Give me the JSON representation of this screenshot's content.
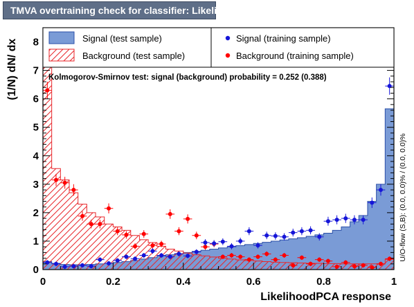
{
  "title": "TMVA overtraining check for classifier: LikelihoodPCA",
  "legend": {
    "signal_test": "Signal (test sample)",
    "background_test": "Background (test sample)",
    "signal_train": "Signal (training sample)",
    "background_train": "Background (training sample)"
  },
  "ks_text": "Kolmogorov-Smirnov test: signal (background) probability = 0.252 (0.388)",
  "overflow_text": "U/O-flow (S,B): (0.0, 0.0)% / (0.0, 0.0)%",
  "colors": {
    "title_bg": "#5f6f88",
    "signal_fill": "#7a9bd6",
    "signal_line": "#2b4fa8",
    "background_hatch": "#e8262a",
    "signal_marker": "#1515d8",
    "background_marker": "#ff0000"
  },
  "chart_data": {
    "type": "histogram",
    "xlabel": "LikelihoodPCA response",
    "ylabel": "(1/N) dN/ dx",
    "xlim": [
      0,
      1
    ],
    "ylim": [
      0,
      8.5
    ],
    "x_ticks": [
      "0",
      "0.2",
      "0.4",
      "0.6",
      "0.8",
      "1"
    ],
    "y_ticks": [
      "0",
      "1",
      "2",
      "3",
      "4",
      "5",
      "6",
      "7",
      "8"
    ],
    "bins": 40,
    "series": [
      {
        "name": "Signal (test sample)",
        "style": "filled",
        "values": [
          0.28,
          0.22,
          0.18,
          0.17,
          0.17,
          0.18,
          0.2,
          0.22,
          0.25,
          0.28,
          0.32,
          0.37,
          0.42,
          0.48,
          0.52,
          0.56,
          0.6,
          0.64,
          0.68,
          0.72,
          0.76,
          0.8,
          0.84,
          0.88,
          0.92,
          0.96,
          1.0,
          1.04,
          1.08,
          1.12,
          1.17,
          1.22,
          1.28,
          1.38,
          1.5,
          1.68,
          1.9,
          2.4,
          3.0,
          5.65
        ]
      },
      {
        "name": "Background (test sample)",
        "style": "hatched",
        "values": [
          7.15,
          3.55,
          3.15,
          2.7,
          2.3,
          2.0,
          1.85,
          1.6,
          1.5,
          1.38,
          1.2,
          1.05,
          0.95,
          0.82,
          0.72,
          0.65,
          0.58,
          0.52,
          0.48,
          0.44,
          0.4,
          0.37,
          0.34,
          0.32,
          0.3,
          0.28,
          0.26,
          0.25,
          0.24,
          0.23,
          0.22,
          0.22,
          0.21,
          0.21,
          0.2,
          0.2,
          0.2,
          0.2,
          0.2,
          0.36
        ]
      },
      {
        "name": "Signal (training sample)",
        "style": "markers",
        "values": [
          0.25,
          0.2,
          0.1,
          0.12,
          0.15,
          0.12,
          0.35,
          0.22,
          0.32,
          0.45,
          0.38,
          0.5,
          0.65,
          0.5,
          0.45,
          0.55,
          0.48,
          0.62,
          0.95,
          0.92,
          0.98,
          0.82,
          1.0,
          1.35,
          0.85,
          1.2,
          1.18,
          1.15,
          1.3,
          1.35,
          1.38,
          1.15,
          1.7,
          1.75,
          1.8,
          1.75,
          1.75,
          2.35,
          2.8,
          6.45
        ]
      },
      {
        "name": "Background (training sample)",
        "style": "markers",
        "values": [
          6.3,
          3.15,
          3.05,
          2.8,
          1.88,
          1.6,
          1.6,
          2.15,
          1.35,
          1.22,
          0.82,
          1.25,
          0.85,
          0.9,
          1.95,
          1.35,
          1.78,
          1.2,
          0.8,
          0.9,
          0.45,
          0.5,
          0.45,
          0.35,
          0.45,
          0.55,
          0.35,
          0.5,
          0.15,
          0.42,
          0.2,
          0.35,
          0.3,
          0.1,
          0.25,
          0.12,
          0.15,
          0.08,
          0.2,
          0.38
        ]
      }
    ]
  }
}
